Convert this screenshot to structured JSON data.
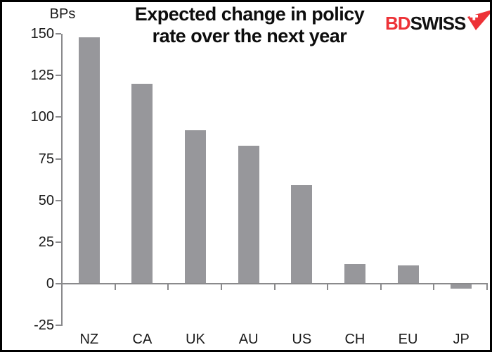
{
  "header": {
    "logo": {
      "part1": "BD",
      "part2": "SWISS",
      "part1_color": "#ED3237",
      "part2_color": "#111111",
      "icon_color": "#ED3237",
      "icon_cross_color": "#ffffff",
      "icon_name": "swiss-flag-arrow-icon"
    },
    "title_line1": "Expected change in policy",
    "title_line2": "rate over the next year"
  },
  "chart_data": {
    "type": "bar",
    "title": "Expected change in policy rate over the next year",
    "ylabel": "BPs",
    "xlabel": "",
    "categories": [
      "NZ",
      "CA",
      "UK",
      "AU",
      "US",
      "CH",
      "EU",
      "JP"
    ],
    "values": [
      148,
      120,
      92,
      83,
      59,
      12,
      11,
      -3
    ],
    "ylim": [
      -25,
      150
    ],
    "yticks": [
      150,
      125,
      100,
      75,
      50,
      25,
      0,
      -25
    ],
    "grid": false,
    "legend": "none",
    "bar_color": "#97979B",
    "axis_color": "#8A8A8C",
    "text_color": "#1a1a1a"
  }
}
